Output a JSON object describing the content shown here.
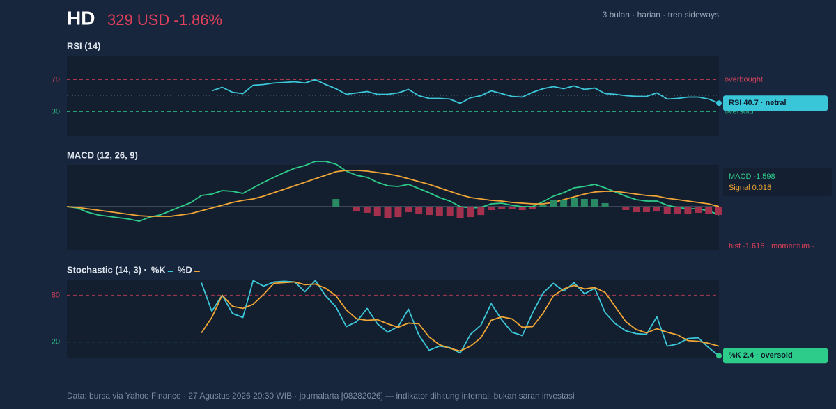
{
  "header": {
    "ticker": "HD",
    "price": "329 USD -1.86%",
    "note": "3 bulan · harian · tren sideways"
  },
  "chart_data": [
    {
      "type": "line",
      "title": "RSI (14)",
      "ylim": [
        0,
        100
      ],
      "yticks": [
        70,
        30
      ],
      "midline": 50,
      "thresholds": [
        {
          "value": 70,
          "label": "overbought",
          "color": "#d0405a"
        },
        {
          "value": 30,
          "label": "oversold",
          "color": "#2ec08a"
        }
      ],
      "series": [
        {
          "color": "#3cc8d8",
          "values": [
            null,
            null,
            null,
            null,
            null,
            null,
            null,
            null,
            null,
            null,
            null,
            null,
            null,
            null,
            56.1,
            60.4,
            54.3,
            52.6,
            63.0,
            63.9,
            65.7,
            66.5,
            67.4,
            65.7,
            70.0,
            63.9,
            58.7,
            51.7,
            53.5,
            55.2,
            51.7,
            51.7,
            53.5,
            57.8,
            50.0,
            46.5,
            46.5,
            45.7,
            40.4,
            47.4,
            50.0,
            56.1,
            52.6,
            49.1,
            48.3,
            54.3,
            58.7,
            61.3,
            58.7,
            62.2,
            57.8,
            59.6,
            52.6,
            51.7,
            50.0,
            49.1,
            49.1,
            53.5,
            45.7,
            46.5,
            48.3,
            48.3,
            45.7,
            40.7
          ]
        }
      ],
      "badge": {
        "label": "RSI 40.7 · netral",
        "color": "#38c6d8"
      }
    },
    {
      "type": "line",
      "title": "MACD (12, 26, 9)",
      "ylim": [
        -8.5,
        8.1
      ],
      "midline": 0,
      "series": [
        {
          "label": "MACD -1.598",
          "color": "#2ecc8a",
          "values": [
            0,
            -0.27,
            -1.08,
            -1.62,
            -1.89,
            -2.16,
            -2.43,
            -2.84,
            -2.03,
            -1.62,
            -0.81,
            0,
            0.81,
            2.16,
            2.43,
            3.11,
            2.97,
            2.57,
            3.65,
            4.73,
            5.68,
            6.62,
            7.43,
            7.97,
            8.78,
            8.78,
            8.24,
            6.89,
            6.08,
            5.68,
            4.73,
            4.05,
            3.92,
            4.32,
            3.51,
            2.7,
            1.76,
            1.08,
            0,
            -0.27,
            -0.14,
            0.54,
            0.68,
            0.27,
            0,
            0,
            0.95,
            2.03,
            2.7,
            3.65,
            3.92,
            4.32,
            3.65,
            2.84,
            2.03,
            1.35,
            1.08,
            1.08,
            0.27,
            -0.14,
            -0.41,
            -0.41,
            -0.81,
            -1.598
          ]
        },
        {
          "label": "Signal 0.018",
          "color": "#f0a636",
          "values": [
            0,
            -0.14,
            -0.41,
            -0.68,
            -0.95,
            -1.22,
            -1.49,
            -1.76,
            -1.89,
            -1.89,
            -1.89,
            -1.62,
            -1.35,
            -0.81,
            -0.27,
            0.27,
            0.81,
            1.22,
            1.49,
            2.03,
            2.7,
            3.38,
            4.05,
            4.73,
            5.41,
            6.08,
            6.76,
            7.03,
            7.03,
            6.89,
            6.62,
            6.35,
            5.95,
            5.41,
            4.86,
            4.32,
            3.65,
            2.97,
            2.3,
            1.76,
            1.49,
            1.22,
            1.08,
            0.81,
            0.68,
            0.54,
            0.54,
            0.81,
            1.35,
            1.89,
            2.43,
            2.84,
            2.97,
            2.97,
            2.7,
            2.43,
            2.16,
            2.03,
            1.62,
            1.35,
            1.08,
            0.81,
            0.54,
            0.018
          ]
        },
        {
          "label": "hist -1.616 · momentum -",
          "kind": "bar",
          "color": "#2a8a64",
          "negative_color": "#a3304c",
          "label_color": "#e0405a",
          "values": [
            null,
            null,
            null,
            null,
            null,
            null,
            null,
            null,
            null,
            null,
            null,
            null,
            null,
            null,
            null,
            null,
            null,
            null,
            null,
            null,
            null,
            null,
            null,
            null,
            null,
            null,
            1.48,
            -0.14,
            -0.95,
            -1.21,
            -1.89,
            -2.3,
            -2.03,
            -1.09,
            -1.35,
            -1.62,
            -1.89,
            -1.89,
            -2.3,
            -2.03,
            -1.63,
            -0.68,
            -0.4,
            -0.54,
            -0.68,
            -0.54,
            0.41,
            1.22,
            1.35,
            1.76,
            1.49,
            1.48,
            0.68,
            -0.13,
            -0.67,
            -1.08,
            -1.08,
            -0.95,
            -1.35,
            -1.49,
            -1.49,
            -1.22,
            -1.35,
            -1.616
          ]
        }
      ]
    },
    {
      "type": "line",
      "title": "Stochastic (14, 3) ·",
      "ylim": [
        0,
        100
      ],
      "yticks": [
        80,
        20
      ],
      "thresholds": [
        {
          "value": 80,
          "color": "#d0405a"
        },
        {
          "value": 20,
          "color": "#2ec08a"
        }
      ],
      "series": [
        {
          "name": "%K",
          "color": "#3cc8d8",
          "values": [
            null,
            null,
            null,
            null,
            null,
            null,
            null,
            null,
            null,
            null,
            null,
            null,
            null,
            96.1,
            59.4,
            80.0,
            56.7,
            51.3,
            98.8,
            91.6,
            97.0,
            97.9,
            97.0,
            84.5,
            98.8,
            79.1,
            64.8,
            39.7,
            46.0,
            63.0,
            43.3,
            32.5,
            39.7,
            62.1,
            29.0,
            9.3,
            14.6,
            12.8,
            5.7,
            29.8,
            41.5,
            69.2,
            48.6,
            32.5,
            28.1,
            57.6,
            82.7,
            95.2,
            85.4,
            96.1,
            81.8,
            88.9,
            57.6,
            43.3,
            34.3,
            30.7,
            29.8,
            52.2,
            14.6,
            17.3,
            24.5,
            25.4,
            12.8,
            2.4
          ]
        },
        {
          "name": "%D",
          "color": "#f0a636",
          "values": [
            null,
            null,
            null,
            null,
            null,
            null,
            null,
            null,
            null,
            null,
            null,
            null,
            null,
            31.6,
            51.3,
            80.0,
            65.7,
            63.0,
            68.3,
            80.9,
            95.2,
            96.1,
            97.0,
            93.4,
            94.3,
            88.9,
            79.1,
            61.2,
            49.6,
            47.8,
            48.6,
            43.3,
            38.8,
            44.2,
            43.3,
            26.3,
            16.4,
            11.9,
            8.4,
            14.6,
            25.4,
            47.8,
            52.2,
            49.6,
            38.8,
            39.7,
            56.7,
            79.1,
            88.0,
            92.5,
            88.0,
            89.8,
            83.6,
            64.8,
            46.0,
            36.1,
            31.6,
            37.0,
            32.5,
            29.0,
            21.8,
            20.9,
            18.2,
            14.6
          ]
        }
      ],
      "badge": {
        "label": "%K 2.4 · oversold",
        "color": "#2ecc8a"
      }
    }
  ],
  "footer": "Data: bursa via Yahoo Finance · 27 Agustus 2026 20:30 WIB · journalarta [08282026] — indikator dihitung internal, bukan saran investasi"
}
